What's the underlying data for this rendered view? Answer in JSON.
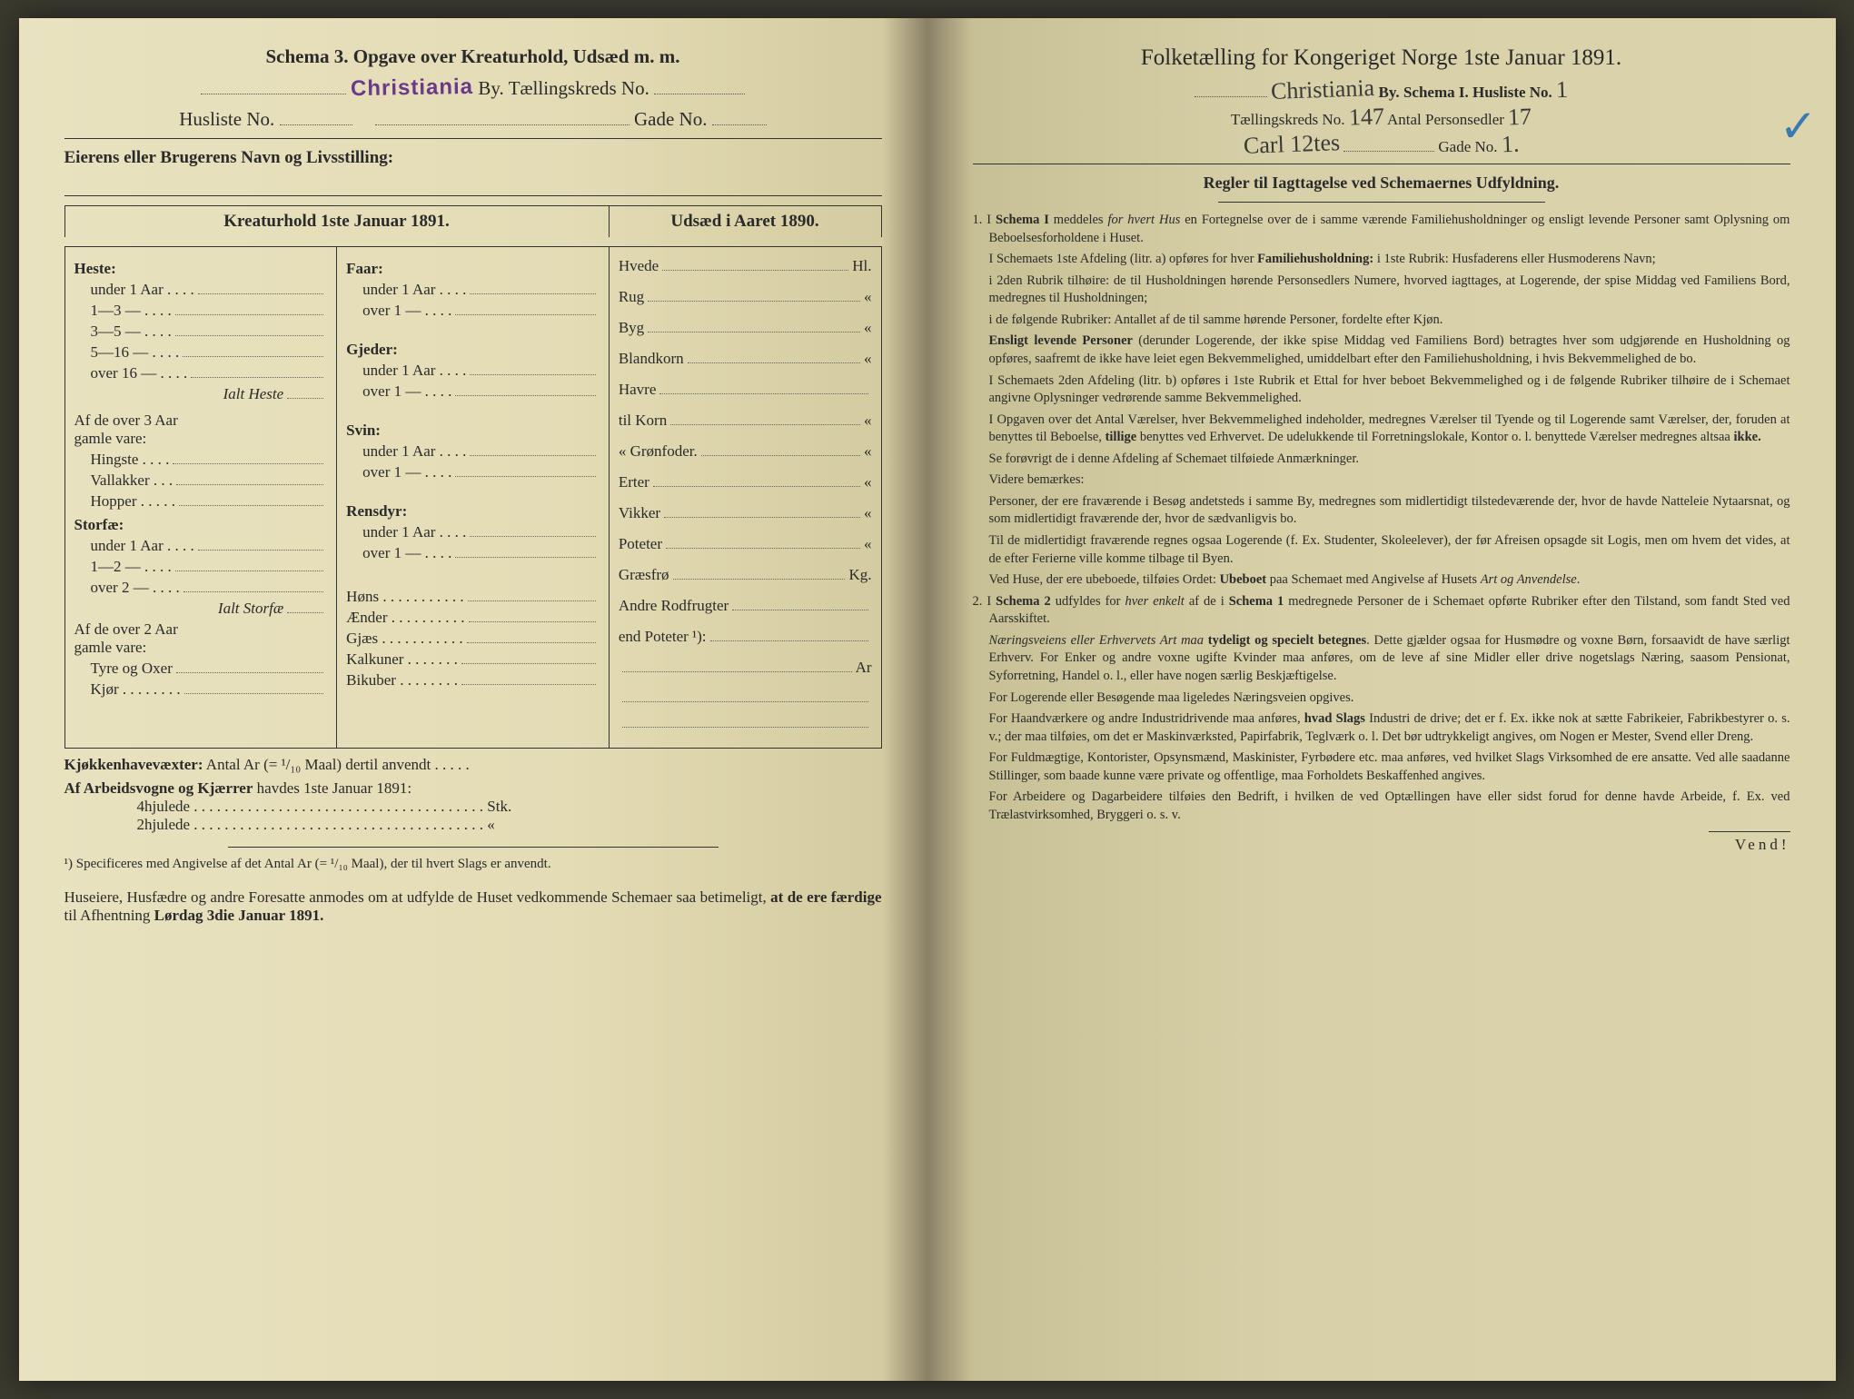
{
  "left": {
    "schemaLabel": "Schema 3.",
    "title": "Opgave over Kreaturhold, Udsæd m. m.",
    "stamp": "Christiania",
    "byLabel": "By.",
    "tkLabel": "Tællingskreds No.",
    "huslisteLabel": "Husliste No.",
    "gadeLabel": "Gade No.",
    "ownerLine": "Eierens eller Brugerens Navn og Livsstilling:",
    "kreaturHdr": "Kreaturhold 1ste Januar 1891.",
    "udsaedHdr": "Udsæd i Aaret 1890.",
    "col1": {
      "heste": "Heste:",
      "hesteItems": [
        "under 1 Aar . . . .",
        "1—3  — . . . .",
        "3—5  — . . . .",
        "5—16 — . . . .",
        "over 16 — . . . ."
      ],
      "ialtHeste": "Ialt Heste",
      "over3": "Af de over 3 Aar",
      "gamleVare": "gamle vare:",
      "over3Items": [
        "Hingste . . . .",
        "Vallakker . . .",
        "Hopper . . . . ."
      ],
      "storfae": "Storfæ:",
      "storfaeItems": [
        "under 1 Aar . . . .",
        "1—2  — . . . .",
        "over 2  — . . . ."
      ],
      "ialtStorfae": "Ialt Storfæ",
      "over2": "Af de over 2 Aar",
      "over2Items": [
        "Tyre og Oxer",
        "Kjør . . . . . . . ."
      ]
    },
    "col2": {
      "faar": "Faar:",
      "faarItems": [
        "under 1 Aar . . . .",
        "over 1  — . . . ."
      ],
      "gjeder": "Gjeder:",
      "gjederItems": [
        "under 1 Aar . . . .",
        "over 1  — . . . ."
      ],
      "svin": "Svin:",
      "svinItems": [
        "under 1 Aar . . . .",
        "over 1  — . . . ."
      ],
      "rensdyr": "Rensdyr:",
      "rensdyrItems": [
        "under 1 Aar . . . .",
        "over 1  — . . . ."
      ],
      "others": [
        "Høns . . . . . . . . . . .",
        "Ænder . . . . . . . . . .",
        "Gjæs . . . . . . . . . . .",
        "Kalkuner . . . . . . .",
        "Bikuber . . . . . . . ."
      ]
    },
    "col3": {
      "items": [
        {
          "l": "Hvede",
          "u": "Hl."
        },
        {
          "l": "Rug",
          "u": "«"
        },
        {
          "l": "Byg",
          "u": "«"
        },
        {
          "l": "Blandkorn",
          "u": "«"
        },
        {
          "l": "Havre",
          "u": ""
        },
        {
          "l": "   til Korn",
          "u": "«"
        },
        {
          "l": "   «  Grønfoder.",
          "u": "«"
        },
        {
          "l": "Erter",
          "u": "«"
        },
        {
          "l": "Vikker",
          "u": "«"
        },
        {
          "l": "Poteter",
          "u": "«"
        },
        {
          "l": "Græsfrø",
          "u": "Kg."
        },
        {
          "l": "Andre Rodfrugter",
          "u": ""
        },
        {
          "l": "   end Poteter ¹):",
          "u": ""
        },
        {
          "l": "",
          "u": "Ar"
        },
        {
          "l": "",
          "u": ""
        },
        {
          "l": "",
          "u": ""
        }
      ]
    },
    "kjokken": "Kjøkkenhavevæxter:",
    "kjokkenText": "Antal Ar (= ¹/₁₀ Maal) dertil anvendt . . . . .",
    "arbeids": "Af Arbeidsvogne og Kjærrer",
    "arbeidsText": "havdes 1ste Januar 1891:",
    "hjul4": "4hjulede . . . . . . . . . . . . . . . . . . . . . . . . . . . . . . . . . . . . . . Stk.",
    "hjul2": "2hjulede . . . . . . . . . . . . . . . . . . . . . . . . . . . . . . . . . . . . . .  «",
    "footnote": "¹) Specificeres med Angivelse af det Antal Ar (= ¹/₁₀ Maal), der til hvert Slags er anvendt.",
    "footer": "Huseiere, Husfædre og andre Foresatte anmodes om at udfylde de Huset vedkommende Schemaer saa betimeligt, at de ere færdige til Afhentning Lørdag 3die Januar 1891.",
    "footerBold1": "at de ere færdige",
    "footerBold2": "Lørdag 3die Januar 1891."
  },
  "right": {
    "title": "Folketælling for Kongeriget Norge 1ste Januar 1891.",
    "hwCity": "Christiania",
    "byLabel": "By.",
    "schemaLabel": "Schema I.",
    "huslisteLabel": "Husliste No.",
    "hwHusliste": "1",
    "tkLabel": "Tællingskreds No.",
    "hwTk": "147",
    "antalLabel": "Antal Personsedler",
    "hwAntal": "17",
    "hwStreet": "Carl 12tes",
    "gadeLabel": "Gade No.",
    "hwGade": "1.",
    "blueMark": "✓",
    "rulesHdr": "Regler til Iagttagelse ved Schemaernes Udfyldning.",
    "rules": [
      "1. I Schema I meddeles for hvert Hus en Fortegnelse over de i samme værende Familiehusholdninger og ensligt levende Personer samt Oplysning om Beboelsesforholdene i Huset.",
      "I Schemaets 1ste Afdeling (litr. a) opføres for hver Familiehusholdning: i 1ste Rubrik: Husfaderens eller Husmoderens Navn;",
      "i 2den Rubrik tilhøire: de til Husholdningen hørende Personsedlers Numere, hvorved iagttages, at Logerende, der spise Middag ved Familiens Bord, medregnes til Husholdningen;",
      "i de følgende Rubriker: Antallet af de til samme hørende Personer, fordelte efter Kjøn.",
      "Ensligt levende Personer (derunder Logerende, der ikke spise Middag ved Familiens Bord) betragtes hver som udgjørende en Husholdning og opføres, saafremt de ikke have leiet egen Bekvemmelighed, umiddelbart efter den Familiehusholdning, i hvis Bekvemmelighed de bo.",
      "I Schemaets 2den Afdeling (litr. b) opføres i 1ste Rubrik et Ettal for hver beboet Bekvemmelighed og i de følgende Rubriker tilhøire de i Schemaet angivne Oplysninger vedrørende samme Bekvemmelighed.",
      "I Opgaven over det Antal Værelser, hver Bekvemmelighed indeholder, medregnes Værelser til Tyende og til Logerende samt Værelser, der, foruden at benyttes til Beboelse, tillige benyttes ved Erhvervet. De udelukkende til Forretningslokale, Kontor o. l. benyttede Værelser medregnes altsaa ikke.",
      "Se forøvrigt de i denne Afdeling af Schemaet tilføiede Anmærkninger.",
      "Videre bemærkes:",
      "Personer, der ere fraværende i Besøg andetsteds i samme By, medregnes som midlertidigt tilstedeværende der, hvor de havde Natteleie Nytaarsnat, og som midlertidigt fraværende der, hvor de sædvanligvis bo.",
      "Til de midlertidigt fraværende regnes ogsaa Logerende (f. Ex. Studenter, Skoleelever), der før Afreisen opsagde sit Logis, men om hvem det vides, at de efter Ferierne ville komme tilbage til Byen.",
      "Ved Huse, der ere ubeboede, tilføies Ordet: Ubeboet paa Schemaet med Angivelse af Husets Art og Anvendelse.",
      "2. I Schema 2 udfyldes for hver enkelt af de i Schema 1 medregnede Personer de i Schemaet opførte Rubriker efter den Tilstand, som fandt Sted ved Aarsskiftet.",
      "Næringsveiens eller Erhvervets Art maa tydeligt og specielt betegnes. Dette gjælder ogsaa for Husmødre og voxne Børn, forsaavidt de have særligt Erhverv. For Enker og andre voxne ugifte Kvinder maa anføres, om de leve af sine Midler eller drive nogetslags Næring, saasom Pensionat, Syforretning, Handel o. l., eller have nogen særlig Beskjæftigelse.",
      "For Logerende eller Besøgende maa ligeledes Næringsveien opgives.",
      "For Haandværkere og andre Industridrivende maa anføres, hvad Slags Industri de drive; det er f. Ex. ikke nok at sætte Fabrikeier, Fabrikbestyrer o. s. v.; der maa tilføies, om det er Maskinværksted, Papirfabrik, Teglværk o. l. Det bør udtrykkeligt angives, om Nogen er Mester, Svend eller Dreng.",
      "For Fuldmægtige, Kontorister, Opsynsmænd, Maskinister, Fyrbødere etc. maa anføres, ved hvilket Slags Virksomhed de ere ansatte. Ved alle saadanne Stillinger, som baade kunne være private og offentlige, maa Forholdets Beskaffenhed angives.",
      "For Arbeidere og Dagarbeidere tilføies den Bedrift, i hvilken de ved Optællingen have eller sidst forud for denne havde Arbeide, f. Ex. ved Trælastvirksomhed, Bryggeri o. s. v."
    ],
    "vend": "Vend!"
  }
}
